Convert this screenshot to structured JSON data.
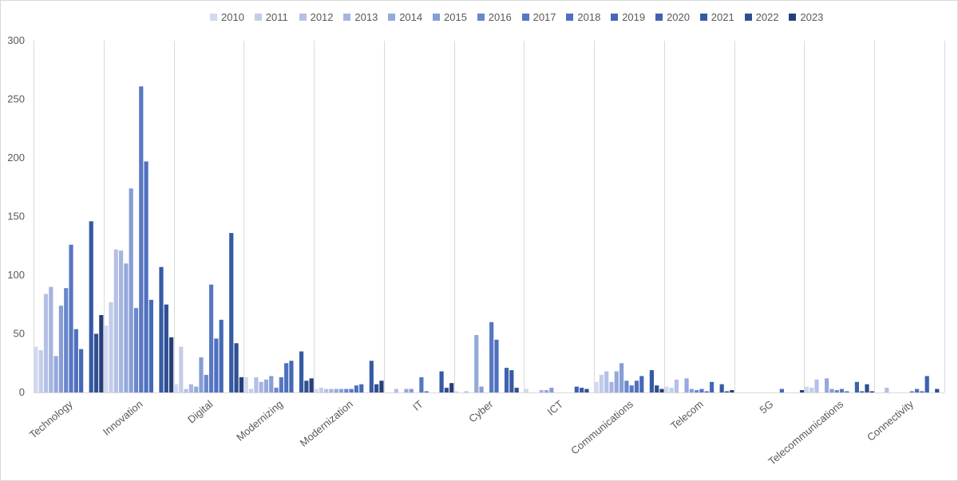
{
  "chart_data": {
    "type": "bar",
    "ylim": [
      0,
      300
    ],
    "yticks": [
      "0",
      "50",
      "100",
      "150",
      "200",
      "250",
      "300"
    ],
    "legend_position": "top",
    "grid": "vertical category separators",
    "categories": [
      "Technology",
      "Innovation",
      "Digital",
      "Modernizing",
      "Modernization",
      "IT",
      "Cyber",
      "ICT",
      "Communications",
      "Telecom",
      "5G",
      "Telecommunications",
      "Connectivity"
    ],
    "series": [
      {
        "name": "2010",
        "color": "#d2d9ee",
        "values": [
          39,
          57,
          7,
          13,
          3,
          0,
          1,
          3,
          9,
          5,
          0,
          5,
          0
        ]
      },
      {
        "name": "2011",
        "color": "#c3cdea",
        "values": [
          36,
          77,
          39,
          3,
          4,
          0,
          0,
          0,
          15,
          4,
          0,
          4,
          0
        ]
      },
      {
        "name": "2012",
        "color": "#b4c1e5",
        "values": [
          84,
          122,
          3,
          13,
          3,
          3,
          1,
          0,
          18,
          11,
          0,
          11,
          4
        ]
      },
      {
        "name": "2013",
        "color": "#a5b5e0",
        "values": [
          90,
          121,
          7,
          9,
          3,
          0,
          0,
          2,
          9,
          0,
          0,
          0,
          0
        ]
      },
      {
        "name": "2014",
        "color": "#95a9db",
        "values": [
          31,
          110,
          5,
          11,
          3,
          3,
          49,
          2,
          18,
          12,
          0,
          12,
          0
        ]
      },
      {
        "name": "2015",
        "color": "#869dd5",
        "values": [
          74,
          174,
          30,
          14,
          3,
          3,
          5,
          4,
          25,
          3,
          0,
          3,
          0
        ]
      },
      {
        "name": "2016",
        "color": "#6a87cc",
        "values": [
          89,
          72,
          15,
          4,
          3,
          0,
          0,
          0,
          10,
          2,
          0,
          2,
          0
        ]
      },
      {
        "name": "2017",
        "color": "#5877c3",
        "values": [
          126,
          261,
          92,
          13,
          3,
          13,
          60,
          0,
          6,
          3,
          0,
          3,
          1
        ]
      },
      {
        "name": "2018",
        "color": "#4e70bf",
        "values": [
          54,
          197,
          46,
          25,
          6,
          1,
          45,
          0,
          10,
          1,
          0,
          1,
          3
        ]
      },
      {
        "name": "2019",
        "color": "#4669b6",
        "values": [
          37,
          79,
          62,
          27,
          7,
          0,
          0,
          0,
          14,
          9,
          3,
          0,
          1
        ]
      },
      {
        "name": "2020",
        "color": "#3e62ae",
        "values": [
          0,
          0,
          0,
          0,
          0,
          0,
          21,
          5,
          0,
          0,
          0,
          9,
          14
        ]
      },
      {
        "name": "2021",
        "color": "#365aa4",
        "values": [
          146,
          107,
          136,
          35,
          27,
          18,
          19,
          4,
          19,
          7,
          0,
          1,
          0
        ]
      },
      {
        "name": "2022",
        "color": "#2f4f93",
        "values": [
          50,
          75,
          42,
          10,
          7,
          4,
          4,
          3,
          6,
          1,
          0,
          7,
          3
        ]
      },
      {
        "name": "2023",
        "color": "#273f78",
        "values": [
          66,
          47,
          13,
          12,
          10,
          8,
          0,
          0,
          3,
          2,
          2,
          1,
          0
        ]
      }
    ]
  }
}
